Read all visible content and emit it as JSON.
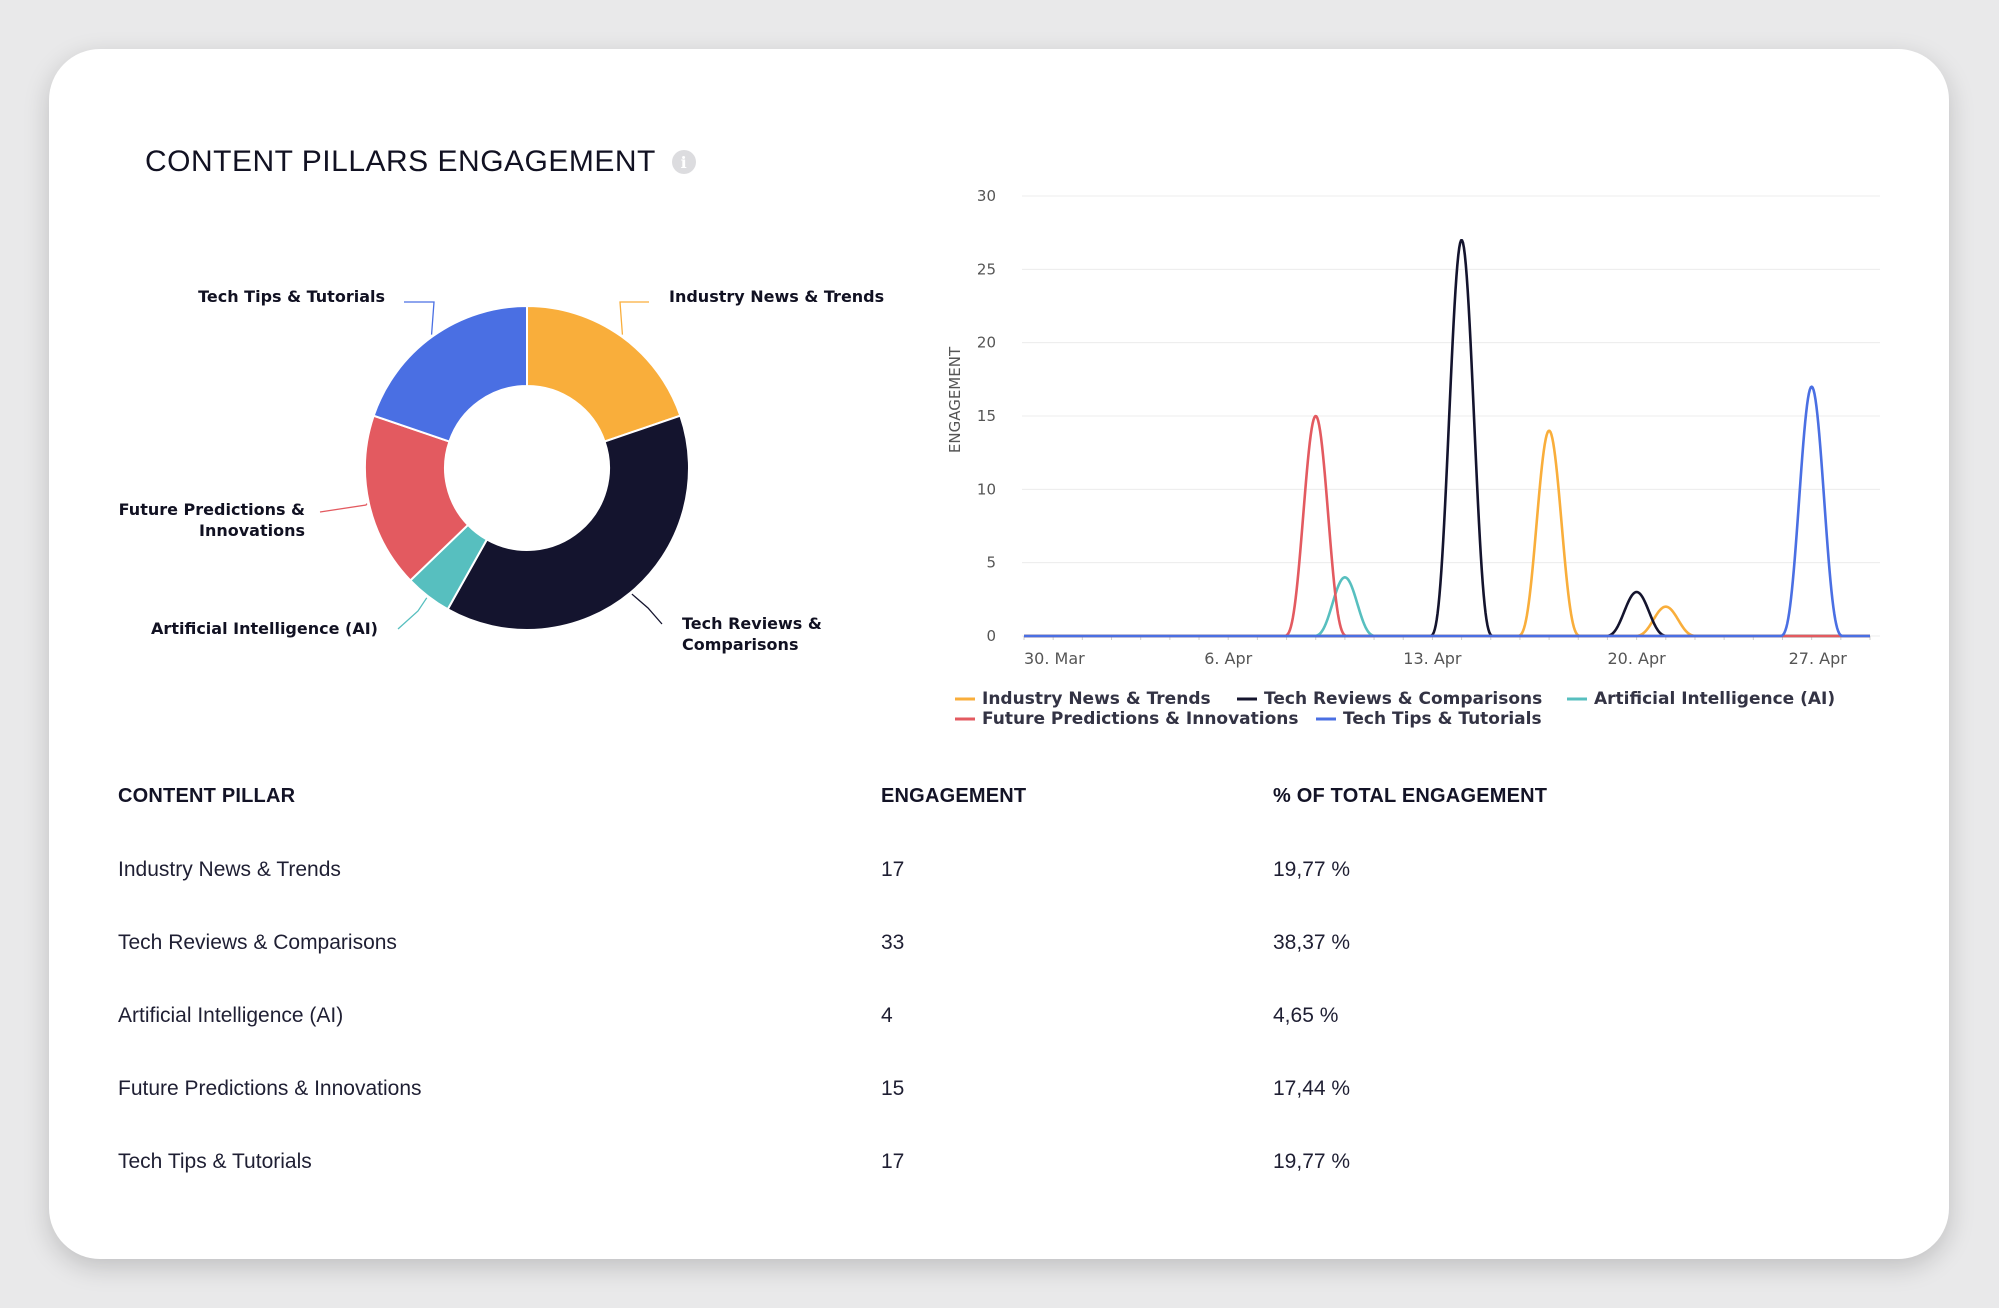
{
  "card": {
    "title": "CONTENT PILLARS ENGAGEMENT",
    "info_icon": "info-icon"
  },
  "colors": {
    "Industry News & Trends": "#f9ae3b",
    "Tech Reviews & Comparisons": "#14142e",
    "Artificial Intelligence (AI)": "#57bfbf",
    "Future Predictions & Innovations": "#e35a60",
    "Tech Tips & Tutorials": "#4a6fe3"
  },
  "chart_data": [
    {
      "type": "pie",
      "variant": "donut",
      "categories": [
        "Industry News & Trends",
        "Tech Reviews & Comparisons",
        "Artificial Intelligence (AI)",
        "Future Predictions & Innovations",
        "Tech Tips & Tutorials"
      ],
      "values": [
        17,
        33,
        4,
        15,
        17
      ],
      "labels": [
        [
          "Industry News & Trends"
        ],
        [
          "Tech Reviews &",
          "Comparisons"
        ],
        [
          "Artificial Intelligence (AI)"
        ],
        [
          "Future Predictions &",
          "Innovations"
        ],
        [
          "Tech Tips & Tutorials"
        ]
      ]
    },
    {
      "type": "line",
      "ylabel": "ENGAGEMENT",
      "ylim": [
        0,
        30
      ],
      "yticks": [
        0,
        5,
        10,
        15,
        20,
        25,
        30
      ],
      "xticks": [
        "30. Mar",
        "6. Apr",
        "13. Apr",
        "20. Apr",
        "27. Apr"
      ],
      "x_range": [
        "2025-03-30",
        "2025-04-28"
      ],
      "grid": true,
      "legend": "bottom",
      "series": [
        {
          "name": "Industry News & Trends",
          "points": [
            [
              "2025-04-17",
              14
            ],
            [
              "2025-04-21",
              2
            ]
          ]
        },
        {
          "name": "Tech Reviews & Comparisons",
          "points": [
            [
              "2025-04-14",
              27
            ],
            [
              "2025-04-20",
              3
            ]
          ]
        },
        {
          "name": "Artificial Intelligence (AI)",
          "points": [
            [
              "2025-04-10",
              4
            ]
          ]
        },
        {
          "name": "Future Predictions & Innovations",
          "points": [
            [
              "2025-04-09",
              15
            ]
          ]
        },
        {
          "name": "Tech Tips & Tutorials",
          "points": [
            [
              "2025-04-26",
              17
            ]
          ]
        }
      ]
    }
  ],
  "table": {
    "headers": [
      "CONTENT PILLAR",
      "ENGAGEMENT",
      "% OF TOTAL ENGAGEMENT"
    ],
    "rows": [
      {
        "pillar": "Industry News & Trends",
        "engagement": "17",
        "percent": "19,77 %"
      },
      {
        "pillar": "Tech Reviews & Comparisons",
        "engagement": "33",
        "percent": "38,37 %"
      },
      {
        "pillar": "Artificial Intelligence (AI)",
        "engagement": "4",
        "percent": "4,65 %"
      },
      {
        "pillar": "Future Predictions & Innovations",
        "engagement": "15",
        "percent": "17,44 %"
      },
      {
        "pillar": "Tech Tips & Tutorials",
        "engagement": "17",
        "percent": "19,77 %"
      }
    ]
  }
}
